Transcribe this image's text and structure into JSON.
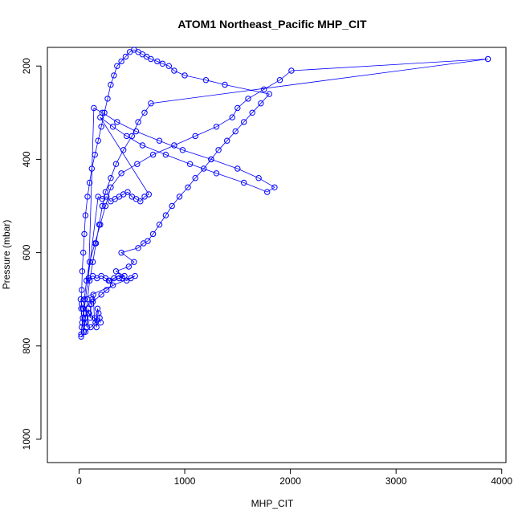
{
  "chart_data": {
    "type": "scatter",
    "title": "ATOM1 Northeast_Pacific MHP_CIT",
    "xlabel": "MHP_CIT",
    "ylabel": "Pressure (mbar)",
    "xlim": [
      -300,
      4040
    ],
    "ylim": [
      1050,
      160
    ],
    "y_inverted": true,
    "xticks": [
      0,
      1000,
      2000,
      3000,
      4000
    ],
    "yticks": [
      200,
      400,
      600,
      800,
      1000
    ],
    "series": [
      {
        "style": "points-and-lines",
        "color": "#0000ff",
        "x": [
          20,
          60,
          110,
          170,
          90,
          40,
          130,
          210,
          260,
          320,
          280,
          380,
          430,
          350,
          470,
          520,
          400,
          560,
          610,
          650,
          700,
          760,
          820,
          880,
          950,
          1030,
          1100,
          1180,
          1250,
          1320,
          1400,
          1480,
          1560,
          1640,
          1720,
          1800,
          1380,
          1200,
          1000,
          900,
          850,
          790,
          740,
          680,
          640,
          600,
          560,
          520,
          480,
          440,
          400,
          360,
          330,
          300,
          270,
          240,
          210,
          180,
          150,
          120,
          100,
          80,
          60,
          50,
          40,
          30,
          25,
          20,
          30,
          45,
          60,
          80,
          100,
          130,
          160,
          190,
          220,
          250,
          300,
          350,
          420,
          500,
          560,
          620,
          680,
          3870,
          2010,
          1900,
          1750,
          1600,
          1500,
          1450,
          1300,
          1100,
          900,
          700,
          550,
          400,
          300,
          250,
          200,
          150,
          100,
          70,
          50,
          35,
          25,
          20,
          180,
          220,
          260,
          300,
          340,
          380,
          420,
          460,
          500,
          540,
          580,
          620,
          660,
          200,
          320,
          450,
          600,
          820,
          1050,
          1300,
          1560,
          1780,
          1850,
          1700,
          1500,
          1250,
          980,
          760,
          540,
          360,
          220,
          140,
          90,
          130,
          170,
          210,
          250,
          290,
          330,
          370,
          410,
          450,
          490,
          530,
          15,
          25,
          35,
          45,
          55,
          65,
          75,
          85,
          95,
          105,
          115,
          125,
          135,
          145,
          155,
          165,
          175,
          185,
          195,
          205
        ],
        "y": [
          780,
          770,
          760,
          745,
          730,
          720,
          705,
          690,
          680,
          670,
          660,
          655,
          650,
          640,
          630,
          620,
          600,
          590,
          580,
          575,
          560,
          540,
          520,
          500,
          480,
          460,
          440,
          420,
          400,
          380,
          360,
          340,
          320,
          300,
          280,
          260,
          240,
          230,
          220,
          210,
          200,
          195,
          190,
          185,
          180,
          175,
          170,
          165,
          170,
          180,
          190,
          200,
          220,
          240,
          270,
          300,
          330,
          360,
          390,
          420,
          450,
          480,
          520,
          560,
          600,
          640,
          680,
          720,
          750,
          770,
          740,
          700,
          660,
          620,
          580,
          540,
          500,
          470,
          440,
          410,
          380,
          350,
          320,
          300,
          280,
          185,
          210,
          230,
          250,
          270,
          290,
          310,
          330,
          350,
          370,
          390,
          410,
          430,
          460,
          500,
          540,
          580,
          620,
          660,
          700,
          740,
          760,
          775,
          480,
          485,
          480,
          490,
          485,
          480,
          475,
          470,
          480,
          485,
          490,
          480,
          475,
          310,
          330,
          350,
          370,
          390,
          410,
          430,
          450,
          470,
          460,
          440,
          420,
          400,
          380,
          360,
          340,
          320,
          300,
          290,
          655,
          650,
          655,
          650,
          655,
          660,
          655,
          650,
          655,
          660,
          655,
          650,
          700,
          710,
          720,
          730,
          740,
          750,
          760,
          720,
          730,
          740,
          710,
          700,
          690,
          740,
          750,
          760,
          720,
          730,
          740,
          750
        ]
      }
    ]
  }
}
